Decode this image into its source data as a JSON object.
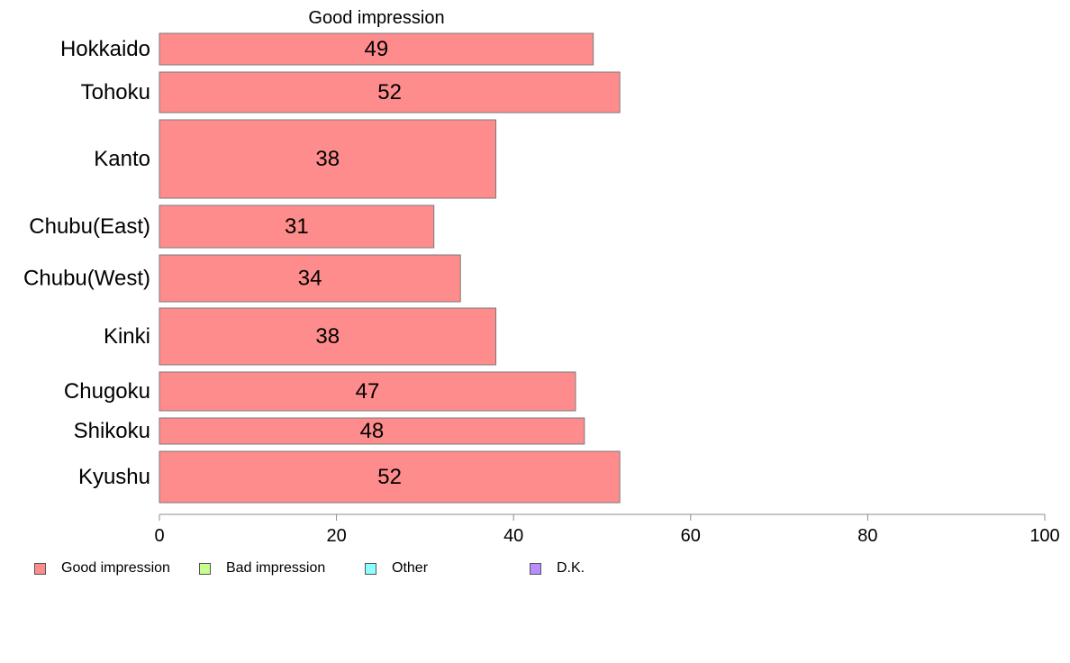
{
  "chart_data": {
    "type": "bar",
    "orientation": "horizontal",
    "title": "Good impression",
    "categories": [
      "Hokkaido",
      "Tohoku",
      "Kanto",
      "Chubu(East)",
      "Chubu(West)",
      "Kinki",
      "Chugoku",
      "Shikoku",
      "Kyushu"
    ],
    "series": [
      {
        "name": "Good impression",
        "color": "#ff8c8c",
        "values": [
          49,
          52,
          38,
          31,
          34,
          38,
          47,
          48,
          52
        ],
        "value_labels": [
          "49",
          "52",
          "38",
          "31",
          "34",
          "38",
          "47",
          "48",
          "52"
        ]
      }
    ],
    "xlim": [
      0,
      100
    ],
    "xticks": [
      "0",
      "20",
      "40",
      "60",
      "80",
      "100"
    ],
    "grid": false,
    "legend_position": "bottom-left"
  },
  "legend": [
    {
      "label": "Good impression",
      "color": "#ff8c8c"
    },
    {
      "label": "Bad impression",
      "color": "#c8ff8c"
    },
    {
      "label": "Other",
      "color": "#8cffff"
    },
    {
      "label": "D.K.",
      "color": "#b98cff"
    }
  ]
}
